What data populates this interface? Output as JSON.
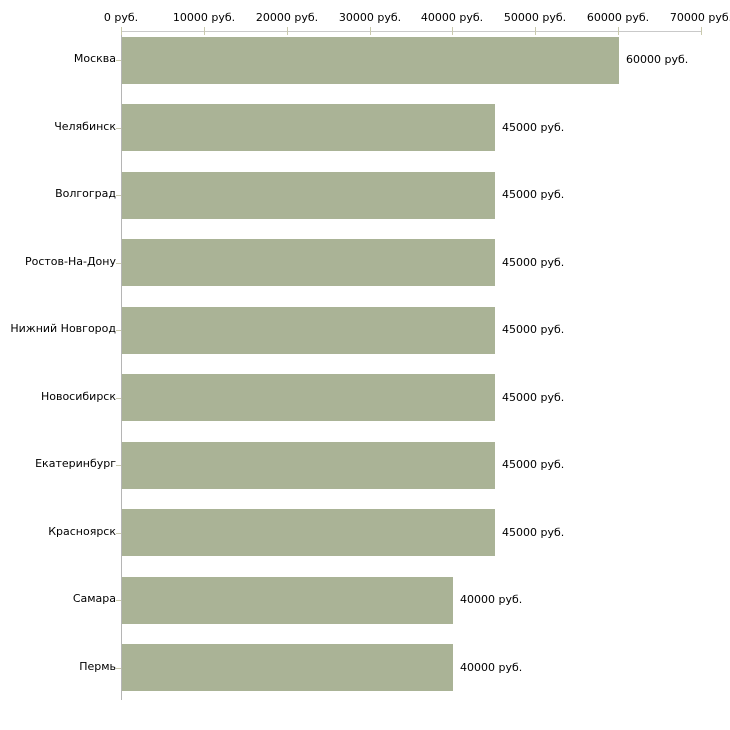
{
  "chart_data": {
    "type": "bar",
    "orientation": "horizontal",
    "title": "",
    "xlabel": "",
    "ylabel": "",
    "unit": "руб.",
    "categories": [
      "Москва",
      "Челябинск",
      "Волгоград",
      "Ростов-На-Дону",
      "Нижний Новгород",
      "Новосибирск",
      "Екатеринбург",
      "Красноярск",
      "Самара",
      "Пермь"
    ],
    "values": [
      60000,
      45000,
      45000,
      45000,
      45000,
      45000,
      45000,
      45000,
      40000,
      40000
    ],
    "value_labels": [
      "60000 руб.",
      "45000 руб.",
      "45000 руб.",
      "45000 руб.",
      "45000 руб.",
      "45000 руб.",
      "45000 руб.",
      "45000 руб.",
      "40000 руб.",
      "40000 руб."
    ],
    "x_tick_values": [
      0,
      10000,
      20000,
      30000,
      40000,
      50000,
      60000,
      70000
    ],
    "x_tick_labels": [
      "0 руб.",
      "10000 руб.",
      "20000 руб.",
      "30000 руб.",
      "40000 руб.",
      "50000 руб.",
      "60000 руб.",
      "70000 руб."
    ],
    "xlim": [
      0,
      70000
    ],
    "grid": false,
    "legend": false,
    "colors": {
      "bar": "#aab396",
      "axis_x": "#c9c9c9",
      "axis_y": "#b5b5b5",
      "tick": "#c9c9ad",
      "text": "#000000",
      "background": "#ffffff"
    }
  }
}
